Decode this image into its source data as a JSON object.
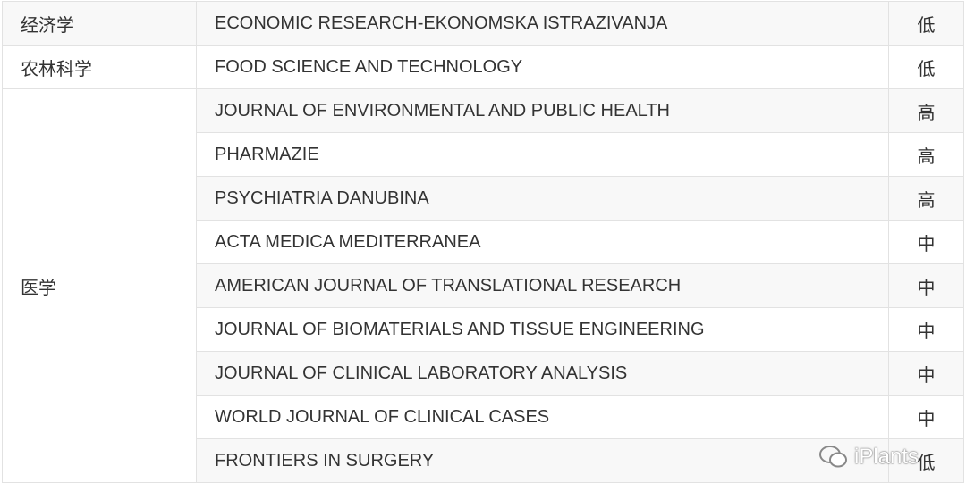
{
  "table": {
    "groups": [
      {
        "field": "经济学",
        "journals": [
          {
            "name": "ECONOMIC RESEARCH-EKONOMSKA ISTRAZIVANJA",
            "level": "低"
          }
        ]
      },
      {
        "field": "农林科学",
        "journals": [
          {
            "name": "FOOD SCIENCE AND TECHNOLOGY",
            "level": "低"
          }
        ]
      },
      {
        "field": "医学",
        "journals": [
          {
            "name": "JOURNAL OF ENVIRONMENTAL AND PUBLIC HEALTH",
            "level": "高"
          },
          {
            "name": "PHARMAZIE",
            "level": "高"
          },
          {
            "name": "PSYCHIATRIA DANUBINA",
            "level": "高"
          },
          {
            "name": "ACTA MEDICA MEDITERRANEA",
            "level": "中"
          },
          {
            "name": "AMERICAN JOURNAL OF TRANSLATIONAL RESEARCH",
            "level": "中"
          },
          {
            "name": "JOURNAL OF BIOMATERIALS AND TISSUE ENGINEERING",
            "level": "中"
          },
          {
            "name": "JOURNAL OF CLINICAL LABORATORY ANALYSIS",
            "level": "中"
          },
          {
            "name": "WORLD JOURNAL OF CLINICAL CASES",
            "level": "中"
          },
          {
            "name": "FRONTIERS IN SURGERY",
            "level": "低"
          }
        ]
      }
    ]
  },
  "watermark": "iPlants"
}
